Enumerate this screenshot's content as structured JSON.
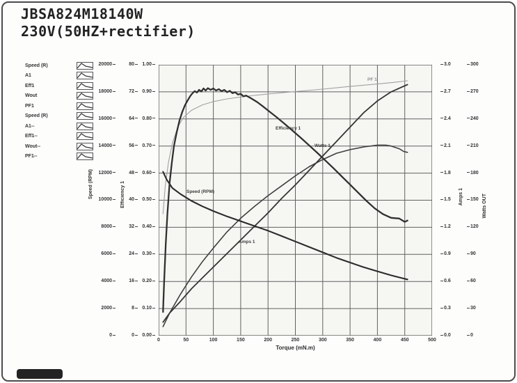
{
  "header": {
    "line1": "JBSA824M18140W",
    "line2": "230V(50HZ+rectifier)"
  },
  "legend": {
    "items": [
      "Speed (R)",
      "A1",
      "Eff1",
      "Wout",
      "PF1",
      "Speed (R)",
      "A1--",
      "Eff1--",
      "Wout--",
      "PF1--"
    ]
  },
  "axes": {
    "speed": {
      "label": "Speed (RPM)",
      "ticks": [
        "20000",
        "18000",
        "16000",
        "14000",
        "12000",
        "10000",
        "8000",
        "6000",
        "4000",
        "2000",
        "0"
      ]
    },
    "eff": {
      "label": "Efficiency 1",
      "ticks": [
        "80",
        "72",
        "64",
        "56",
        "48",
        "40",
        "32",
        "24",
        "16",
        "8",
        "0"
      ]
    },
    "pf": {
      "ticks": [
        "1.00",
        "0.90",
        "0.80",
        "0.70",
        "0.60",
        "0.50",
        "0.40",
        "0.30",
        "0.20",
        "0.10",
        "0.00"
      ]
    },
    "amps": {
      "label": "Amps 1",
      "ticks": [
        "3.0",
        "2.7",
        "2.4",
        "2.1",
        "1.8",
        "1.5",
        "1.2",
        "0.9",
        "0.6",
        "0.3",
        "0.0"
      ]
    },
    "watts": {
      "label": "Watts OUT",
      "ticks": [
        "300",
        "270",
        "240",
        "210",
        "180",
        "150",
        "120",
        "90",
        "60",
        "30",
        "0"
      ]
    },
    "x": {
      "label": "Torque (mN.m)",
      "ticks": [
        "0",
        "50",
        "100",
        "150",
        "200",
        "250",
        "300",
        "350",
        "400",
        "450",
        "500"
      ]
    }
  },
  "curve_labels": {
    "speed": "Speed (RPM)",
    "amps": "Amps 1",
    "eff": "Efficiency 1",
    "watts": "Watts 1",
    "pf": "PF 1"
  },
  "colors": {
    "grid": "#606060",
    "frame": "#4b4b4b",
    "plot_bg": "#f6f6f3",
    "text": "#2a2a2a",
    "curve_dark": "#2b2b2b",
    "curve_mid": "#3f3f3f",
    "curve_light": "#a0a0a0"
  },
  "chart_data": {
    "type": "line",
    "title": "JBSA824M18140W 230V(50HZ+rectifier)",
    "xlabel": "Torque (mN.m)",
    "xlim": [
      0,
      500
    ],
    "grid": true,
    "grid_divisions": 10,
    "y_axes": [
      {
        "name": "Speed (RPM)",
        "range": [
          0,
          20000
        ],
        "side": "left"
      },
      {
        "name": "Efficiency 1",
        "range": [
          0,
          80
        ],
        "side": "left"
      },
      {
        "name": "PF",
        "range": [
          0,
          1
        ],
        "side": "left"
      },
      {
        "name": "Amps 1",
        "range": [
          0,
          3
        ],
        "side": "right"
      },
      {
        "name": "Watts OUT",
        "range": [
          0,
          300
        ],
        "side": "right"
      }
    ],
    "series": [
      {
        "name": "PF1",
        "axis": "PF",
        "axis_max": 1,
        "color": "#a0a0a0",
        "width": 1.1,
        "points": [
          [
            8,
            0.45
          ],
          [
            12,
            0.55
          ],
          [
            18,
            0.64
          ],
          [
            25,
            0.71
          ],
          [
            35,
            0.77
          ],
          [
            45,
            0.805
          ],
          [
            60,
            0.832
          ],
          [
            80,
            0.852
          ],
          [
            100,
            0.864
          ],
          [
            125,
            0.874
          ],
          [
            150,
            0.881
          ],
          [
            175,
            0.887
          ],
          [
            200,
            0.892
          ],
          [
            250,
            0.901
          ],
          [
            300,
            0.91
          ],
          [
            350,
            0.92
          ],
          [
            400,
            0.929
          ],
          [
            430,
            0.935
          ],
          [
            455,
            0.941
          ]
        ]
      },
      {
        "name": "Wout",
        "axis": "Watts OUT",
        "axis_max": 300,
        "color": "#3f3f3f",
        "width": 1.6,
        "points": [
          [
            8,
            10
          ],
          [
            20,
            25
          ],
          [
            40,
            46
          ],
          [
            60,
            65
          ],
          [
            80,
            82
          ],
          [
            100,
            97
          ],
          [
            125,
            115
          ],
          [
            150,
            130
          ],
          [
            175,
            143
          ],
          [
            200,
            155
          ],
          [
            225,
            166
          ],
          [
            250,
            177
          ],
          [
            275,
            187
          ],
          [
            300,
            195
          ],
          [
            325,
            202
          ],
          [
            350,
            206
          ],
          [
            375,
            209
          ],
          [
            400,
            211
          ],
          [
            415,
            211
          ],
          [
            425,
            210
          ],
          [
            440,
            207
          ],
          [
            448,
            204
          ],
          [
            455,
            203
          ]
        ]
      },
      {
        "name": "A1",
        "axis": "Amps 1",
        "axis_max": 3,
        "color": "#343434",
        "width": 1.8,
        "points": [
          [
            8,
            0.15
          ],
          [
            20,
            0.25
          ],
          [
            40,
            0.38
          ],
          [
            60,
            0.52
          ],
          [
            80,
            0.64
          ],
          [
            100,
            0.76
          ],
          [
            125,
            0.91
          ],
          [
            150,
            1.06
          ],
          [
            175,
            1.21
          ],
          [
            200,
            1.36
          ],
          [
            225,
            1.52
          ],
          [
            250,
            1.67
          ],
          [
            275,
            1.83
          ],
          [
            300,
            1.99
          ],
          [
            325,
            2.15
          ],
          [
            350,
            2.31
          ],
          [
            375,
            2.47
          ],
          [
            400,
            2.6
          ],
          [
            425,
            2.7
          ],
          [
            440,
            2.74
          ],
          [
            455,
            2.78
          ]
        ]
      },
      {
        "name": "Speed (R)",
        "axis": "Speed (RPM)",
        "axis_max": 20000,
        "color": "#2b2b2b",
        "width": 2.1,
        "points": [
          [
            8,
            12100
          ],
          [
            15,
            11500
          ],
          [
            25,
            10900
          ],
          [
            40,
            10450
          ],
          [
            60,
            9950
          ],
          [
            80,
            9550
          ],
          [
            100,
            9200
          ],
          [
            125,
            8800
          ],
          [
            150,
            8450
          ],
          [
            175,
            8100
          ],
          [
            200,
            7750
          ],
          [
            225,
            7350
          ],
          [
            250,
            6950
          ],
          [
            275,
            6550
          ],
          [
            300,
            6150
          ],
          [
            325,
            5750
          ],
          [
            350,
            5400
          ],
          [
            375,
            5050
          ],
          [
            400,
            4750
          ],
          [
            425,
            4450
          ],
          [
            440,
            4300
          ],
          [
            455,
            4150
          ]
        ]
      },
      {
        "name": "Eff1",
        "axis": "Efficiency 1",
        "axis_max": 80,
        "color": "#303030",
        "width": 2.3,
        "points": [
          [
            8,
            7
          ],
          [
            10,
            16
          ],
          [
            13,
            27
          ],
          [
            16,
            36
          ],
          [
            20,
            45
          ],
          [
            24,
            51
          ],
          [
            28,
            56
          ],
          [
            33,
            60
          ],
          [
            38,
            63.5
          ],
          [
            43,
            66
          ],
          [
            48,
            68
          ],
          [
            53,
            69.5
          ],
          [
            58,
            70.8
          ],
          [
            62,
            71.6
          ],
          [
            66,
            72.2
          ],
          [
            70,
            71.8
          ],
          [
            74,
            72.6
          ],
          [
            78,
            72.1
          ],
          [
            82,
            73
          ],
          [
            86,
            72.4
          ],
          [
            90,
            73.1
          ],
          [
            95,
            72.6
          ],
          [
            100,
            73
          ],
          [
            105,
            72.4
          ],
          [
            110,
            72.8
          ],
          [
            115,
            72.2
          ],
          [
            120,
            72.6
          ],
          [
            125,
            71.9
          ],
          [
            130,
            72.3
          ],
          [
            135,
            71.6
          ],
          [
            140,
            71.9
          ],
          [
            145,
            71.2
          ],
          [
            150,
            71.4
          ],
          [
            155,
            70.7
          ],
          [
            160,
            70.9
          ],
          [
            170,
            70
          ],
          [
            180,
            69
          ],
          [
            190,
            67.8
          ],
          [
            200,
            66.5
          ],
          [
            215,
            64.6
          ],
          [
            230,
            62.6
          ],
          [
            245,
            60.5
          ],
          [
            260,
            58.4
          ],
          [
            275,
            56.2
          ],
          [
            290,
            54
          ],
          [
            305,
            51.7
          ],
          [
            320,
            49.4
          ],
          [
            335,
            47
          ],
          [
            350,
            44.6
          ],
          [
            365,
            42.2
          ],
          [
            380,
            39.8
          ],
          [
            395,
            37.6
          ],
          [
            410,
            35.9
          ],
          [
            425,
            34.8
          ],
          [
            440,
            34.6
          ],
          [
            450,
            33.6
          ],
          [
            455,
            34
          ]
        ]
      }
    ]
  }
}
